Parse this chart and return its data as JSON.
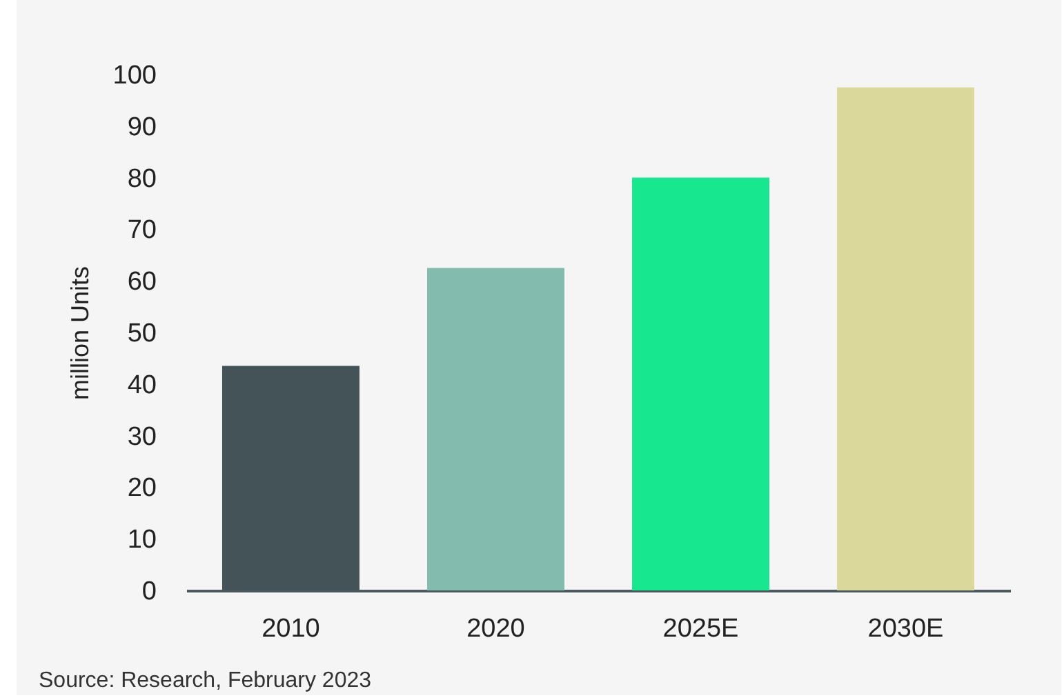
{
  "chart_data": {
    "type": "bar",
    "ylabel": "million Units",
    "categories": [
      "2010",
      "2020",
      "2025E",
      "2030E"
    ],
    "values": [
      43.5,
      62.5,
      80,
      97.5
    ],
    "colors": [
      "#435358",
      "#83bcae",
      "#17e88f",
      "#dbd89b"
    ],
    "ylim": [
      0,
      100
    ],
    "yticks": [
      0,
      10,
      20,
      30,
      40,
      50,
      60,
      70,
      80,
      90,
      100
    ],
    "grid": false,
    "annotations": [
      "Source: Research, February 2023"
    ]
  }
}
